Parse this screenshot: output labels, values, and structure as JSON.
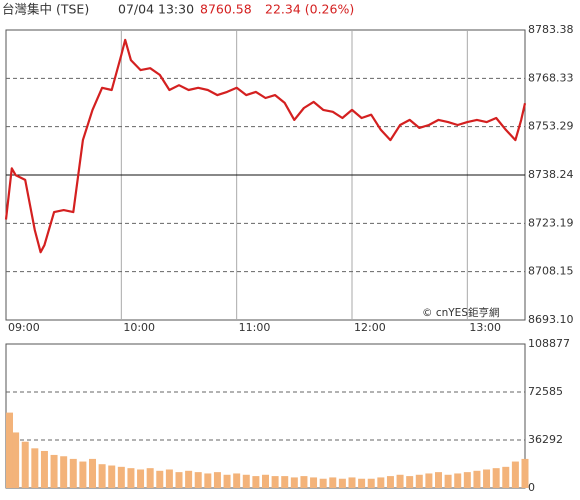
{
  "header": {
    "name": "台灣集中 (TSE)",
    "datetime": "07/04 13:30",
    "price": "8760.58",
    "change": "22.34 (0.26%)"
  },
  "watermark": "© cnYES鉅亨網",
  "chart_data": [
    {
      "type": "line",
      "color": "#d42020",
      "x": [
        0,
        3,
        5,
        10,
        15,
        18,
        20,
        25,
        30,
        35,
        40,
        45,
        50,
        55,
        60,
        62,
        65,
        70,
        75,
        80,
        85,
        90,
        95,
        100,
        105,
        110,
        115,
        120,
        125,
        130,
        135,
        140,
        145,
        150,
        155,
        160,
        165,
        170,
        175,
        180,
        185,
        190,
        195,
        200,
        205,
        210,
        215,
        220,
        225,
        230,
        235,
        240,
        245,
        250,
        255,
        260,
        265,
        268,
        270
      ],
      "values": [
        8724.4,
        8740.3,
        8738.2,
        8736.7,
        8721.1,
        8714.2,
        8716.4,
        8726.7,
        8727.3,
        8726.7,
        8749.1,
        8758.5,
        8765.4,
        8764.7,
        8775.6,
        8780.3,
        8774.0,
        8770.9,
        8771.5,
        8769.4,
        8764.7,
        8766.2,
        8764.7,
        8765.4,
        8764.7,
        8763.1,
        8764.1,
        8765.4,
        8763.1,
        8764.1,
        8762.2,
        8763.1,
        8760.7,
        8755.4,
        8759.1,
        8761.0,
        8758.5,
        8757.9,
        8756.0,
        8758.5,
        8756.0,
        8757.0,
        8752.3,
        8749.1,
        8753.8,
        8755.4,
        8752.9,
        8753.8,
        8755.4,
        8754.7,
        8753.8,
        8754.7,
        8755.4,
        8754.7,
        8756.0,
        8752.3,
        8749.1,
        8755.4,
        8760.6
      ],
      "xlim": [
        0,
        270
      ],
      "xticks": [
        {
          "value": 0,
          "label": "09:00"
        },
        {
          "value": 60,
          "label": "10:00"
        },
        {
          "value": 120,
          "label": "11:00"
        },
        {
          "value": 180,
          "label": "12:00"
        },
        {
          "value": 240,
          "label": "13:00"
        }
      ],
      "ylim": [
        8693.1,
        8783.38
      ],
      "yticks": [
        8783.38,
        8768.33,
        8753.29,
        8738.24,
        8723.19,
        8708.15,
        {
          "value": 8693.1,
          "label": "8693.10"
        }
      ],
      "previous_close": 8738.24,
      "grid": true
    },
    {
      "type": "bar",
      "color": "#f3b37a",
      "x": [
        0,
        5,
        10,
        15,
        20,
        25,
        30,
        35,
        40,
        45,
        50,
        55,
        60,
        65,
        70,
        75,
        80,
        85,
        90,
        95,
        100,
        105,
        110,
        115,
        120,
        125,
        130,
        135,
        140,
        145,
        150,
        155,
        160,
        165,
        170,
        175,
        180,
        185,
        190,
        195,
        200,
        205,
        210,
        215,
        220,
        225,
        230,
        235,
        240,
        245,
        250,
        255,
        260,
        265,
        270
      ],
      "values": [
        57000,
        42000,
        35000,
        30000,
        28000,
        25000,
        24000,
        22000,
        20000,
        22000,
        18000,
        17000,
        16000,
        15000,
        14000,
        15000,
        13000,
        14000,
        12000,
        13000,
        12000,
        11000,
        12000,
        10000,
        11000,
        10000,
        9000,
        10000,
        9000,
        9000,
        8000,
        9000,
        8000,
        7000,
        8000,
        7000,
        8000,
        7000,
        7000,
        8000,
        9000,
        10000,
        9000,
        10000,
        11000,
        12000,
        10000,
        11000,
        12000,
        13000,
        14000,
        15000,
        16000,
        20000,
        22000
      ],
      "xlim": [
        0,
        270
      ],
      "ylim": [
        0,
        108877
      ],
      "yticks": [
        108877,
        72585,
        36292,
        0
      ],
      "grid": true
    }
  ]
}
